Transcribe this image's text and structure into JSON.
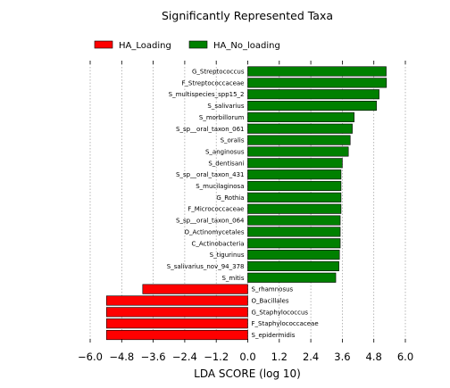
{
  "chart_data": {
    "type": "bar",
    "orientation": "horizontal",
    "title": "Significantly Represented Taxa",
    "xlabel": "LDA SCORE (log 10)",
    "ylabel": "",
    "xlim": [
      -6.0,
      6.0
    ],
    "xticks": [
      -6.0,
      -4.8,
      -3.6,
      -2.4,
      -1.2,
      0.0,
      1.2,
      2.4,
      3.6,
      4.8,
      6.0
    ],
    "xtick_labels": [
      "−6.0",
      "−4.8",
      "−3.6",
      "−2.4",
      "−1.2",
      "0.0",
      "1.2",
      "2.4",
      "3.6",
      "4.8",
      "6.0"
    ],
    "grid": "vertical dotted",
    "legend": {
      "placement": "top-left",
      "entries": [
        {
          "name": "HA_Loading",
          "color": "#ff0000"
        },
        {
          "name": "HA_No_loading",
          "color": "#008000"
        }
      ]
    },
    "series": [
      {
        "name": "HA_No_loading",
        "color": "#008000",
        "categories": [
          "G_Streptococcus",
          "F_Streptococcaceae",
          "S_multispecies_spp15_2",
          "S_salivarius",
          "S_morbillorum",
          "S_sp__oral_taxon_061",
          "S_oralis",
          "S_anginosus",
          "S_dentisani",
          "S_sp__oral_taxon_431",
          "S_mucilaginosa",
          "G_Rothia",
          "F_Micrococcaceae",
          "S_sp__oral_taxon_064",
          "O_Actinomycetales",
          "C_Actinobacteria",
          "S_tigurinus",
          "S_salivarius_nov_94_378",
          "S_mitis"
        ],
        "values": [
          5.27,
          5.28,
          5.0,
          4.9,
          4.05,
          3.98,
          3.9,
          3.83,
          3.6,
          3.55,
          3.55,
          3.55,
          3.55,
          3.52,
          3.52,
          3.52,
          3.49,
          3.47,
          3.35
        ]
      },
      {
        "name": "HA_Loading",
        "color": "#ff0000",
        "categories": [
          "S_rhamnosus",
          "O_Bacillales",
          "G_Staphylococcus",
          "F_Staphylococcaceae",
          "S_epidermidis"
        ],
        "values": [
          -4.0,
          -5.38,
          -5.38,
          -5.38,
          -5.38
        ]
      }
    ]
  }
}
